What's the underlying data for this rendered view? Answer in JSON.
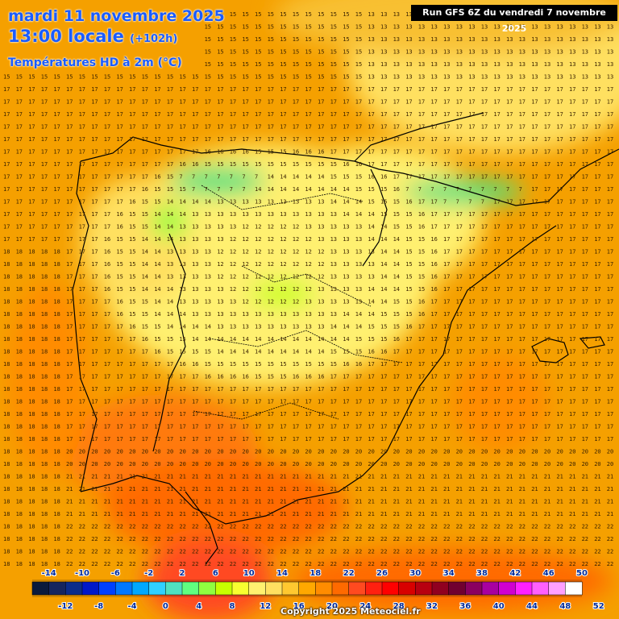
{
  "header": {
    "date_line": "mardi 11 novembre 2025",
    "time_line": "13:00 locale",
    "lead_time": "(+102h)",
    "variable": "Températures HD à 2m (°C)"
  },
  "run_label": "Run GFS 6Z du vendredi 7 novembre 2025",
  "copyright": "Copyright 2025 Meteociel.fr",
  "legend": {
    "top_labels": [
      "-14",
      "-10",
      "-6",
      "-2",
      "2",
      "6",
      "10",
      "14",
      "18",
      "22",
      "26",
      "30",
      "34",
      "38",
      "42",
      "46",
      "50"
    ],
    "bottom_labels": [
      "-12",
      "-8",
      "-4",
      "0",
      "4",
      "8",
      "12",
      "16",
      "20",
      "24",
      "28",
      "32",
      "36",
      "40",
      "44",
      "48",
      "52"
    ],
    "colors": [
      "#0a1a3c",
      "#15255e",
      "#0b2c8a",
      "#0018c8",
      "#0040ff",
      "#0078ff",
      "#00a8ff",
      "#30d0ff",
      "#50e0c0",
      "#60ff80",
      "#90ff40",
      "#c8ff00",
      "#f8ff30",
      "#fff070",
      "#ffe060",
      "#ffc830",
      "#ffa800",
      "#ff8c00",
      "#ff6a00",
      "#ff4a20",
      "#ff2010",
      "#ff0000",
      "#d80000",
      "#b80010",
      "#900020",
      "#700030",
      "#8a0060",
      "#a800a0",
      "#d000d0",
      "#ff20ff",
      "#ff60ff",
      "#ffa0ff",
      "#ffffff"
    ]
  },
  "map": {
    "region": "Péninsule Ibérique",
    "value_range_shown": [
      6,
      25
    ]
  }
}
